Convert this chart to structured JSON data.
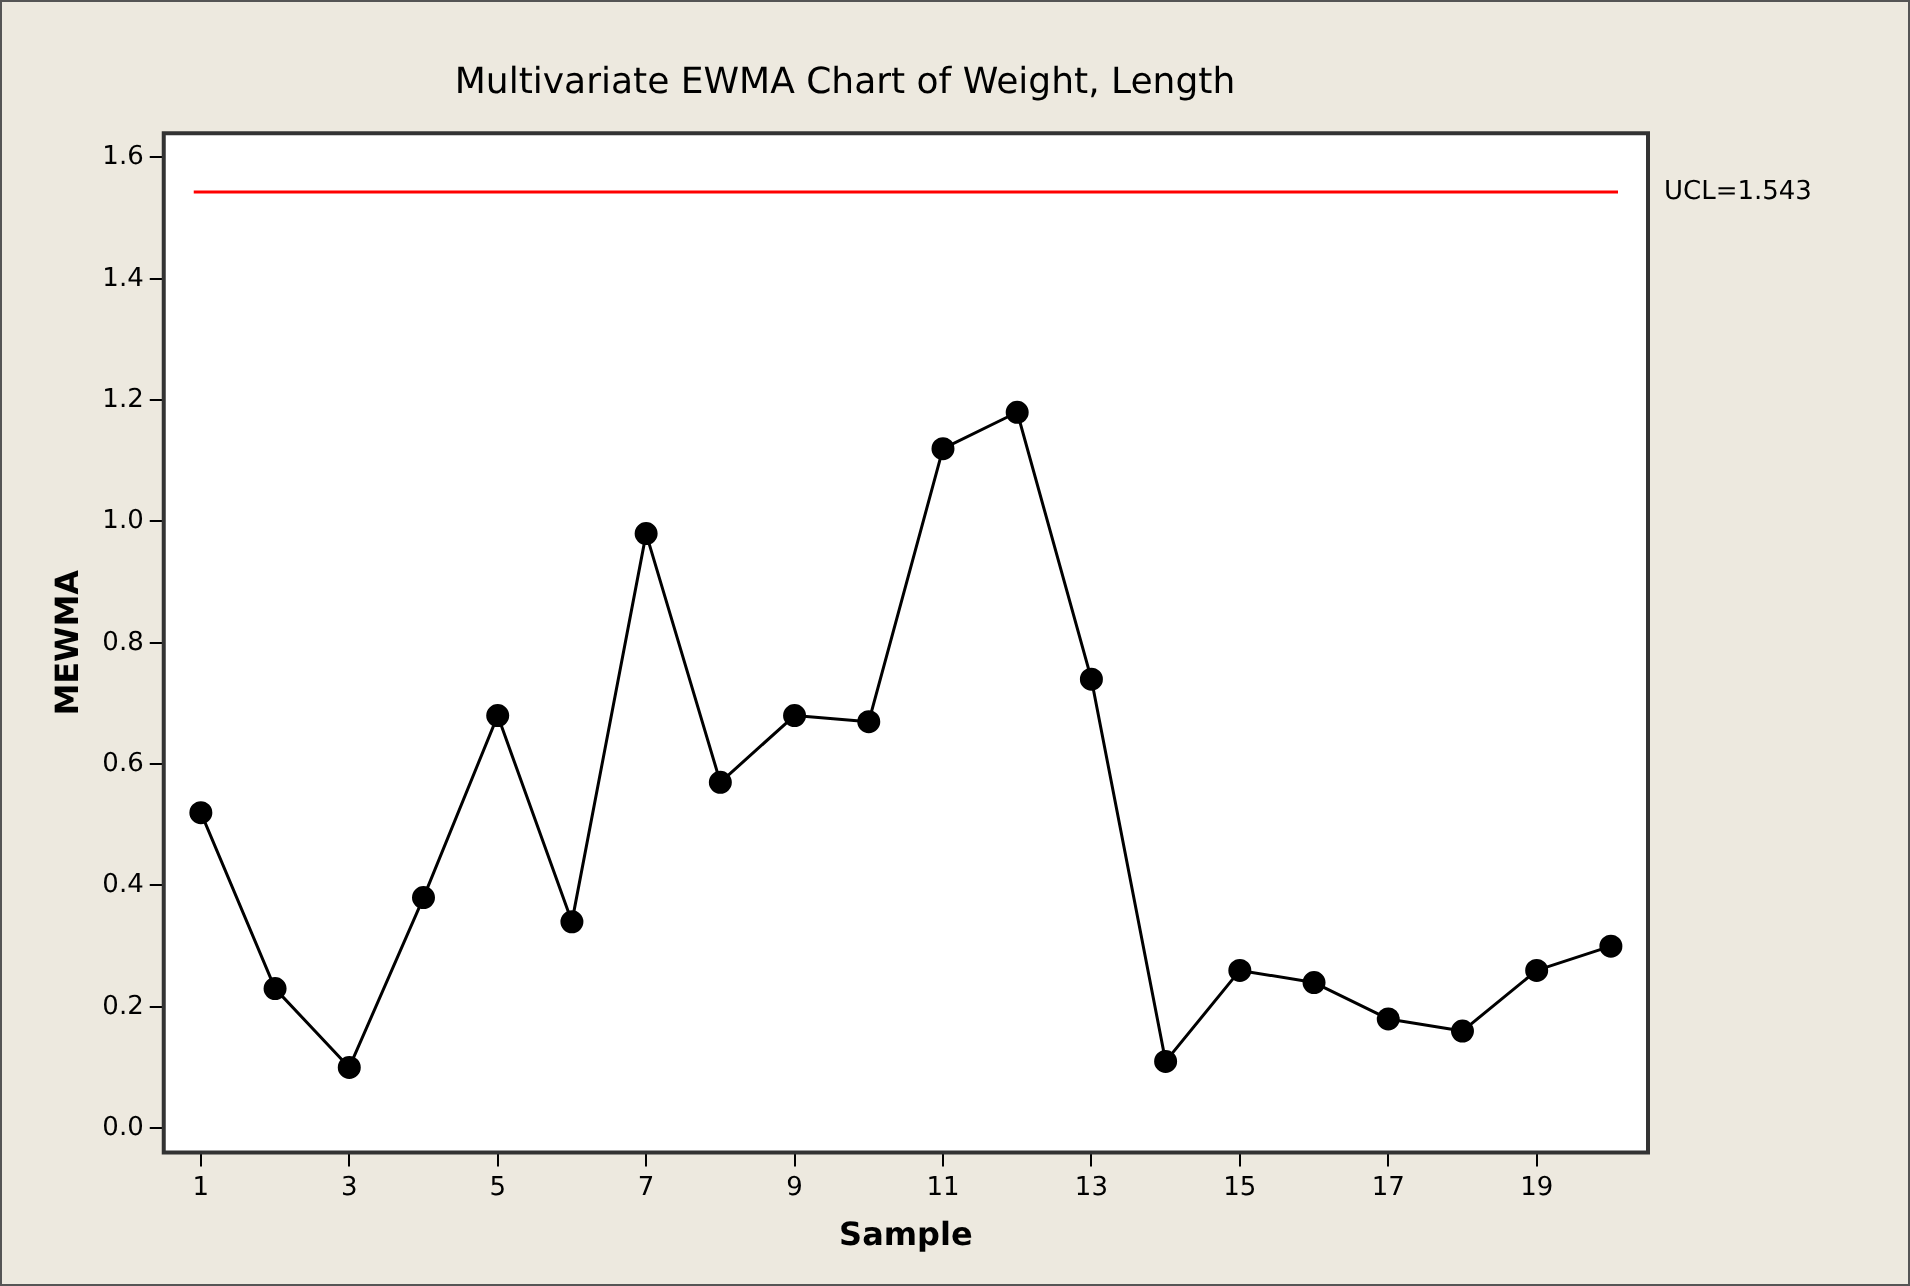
{
  "chart_data": {
    "type": "line",
    "title": "Multivariate EWMA Chart of Weight, Length",
    "xlabel": "Sample",
    "ylabel": "MEWMA",
    "x": [
      1,
      2,
      3,
      4,
      5,
      6,
      7,
      8,
      9,
      10,
      11,
      12,
      13,
      14,
      15,
      16,
      17,
      18,
      19,
      20
    ],
    "series": [
      {
        "color": "#000000",
        "values": [
          0.52,
          0.23,
          0.1,
          0.38,
          0.68,
          0.34,
          0.98,
          0.57,
          0.68,
          0.67,
          1.12,
          1.18,
          0.74,
          0.11,
          0.26,
          0.24,
          0.18,
          0.16,
          0.26,
          0.3
        ]
      }
    ],
    "xlim": [
      0.5,
      20.5
    ],
    "xticks": [
      1,
      3,
      5,
      7,
      9,
      11,
      13,
      15,
      17,
      19
    ],
    "ylim": [
      -0.04,
      1.64
    ],
    "yticks": [
      {
        "value": 0,
        "label": "0.0"
      },
      {
        "value": 0.2,
        "label": "0.2"
      },
      {
        "value": 0.4,
        "label": "0.4"
      },
      {
        "value": 0.6,
        "label": "0.6"
      },
      {
        "value": 0.8,
        "label": "0.8"
      },
      {
        "value": 1,
        "label": "1.0"
      },
      {
        "value": 1.2,
        "label": "1.2"
      },
      {
        "value": 1.4,
        "label": "1.4"
      },
      {
        "value": 1.6,
        "label": "1.6"
      }
    ],
    "ref_lines": [
      {
        "axis": "y",
        "value": 1.543,
        "label": "UCL=1.543",
        "color": "#ff0000"
      }
    ],
    "grid": false,
    "legend": false,
    "marker": "circle",
    "line_style": "solid"
  }
}
